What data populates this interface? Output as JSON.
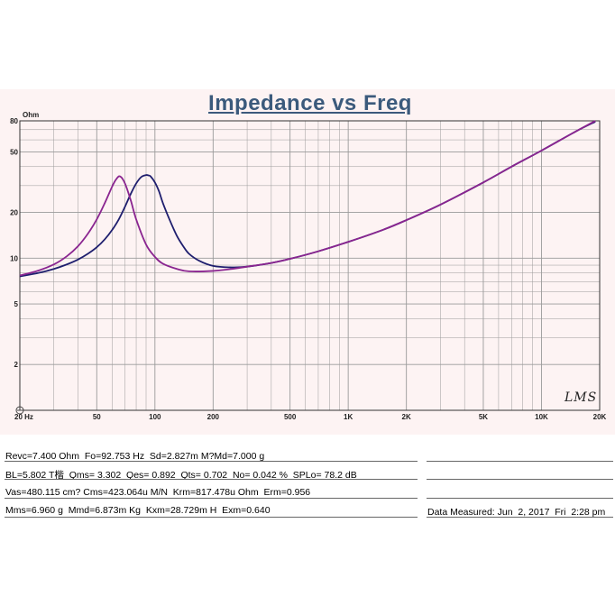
{
  "chart_data": {
    "type": "line",
    "title": "Impedance vs Freq",
    "ylabel": "Ohm",
    "xlabel": "",
    "x_scale": "log",
    "y_scale": "log",
    "xlim": [
      20,
      20000
    ],
    "ylim": [
      1,
      80
    ],
    "grid": true,
    "x_ticks": [
      {
        "value": 20,
        "label": "20 Hz"
      },
      {
        "value": 50,
        "label": "50"
      },
      {
        "value": 100,
        "label": "100"
      },
      {
        "value": 200,
        "label": "200"
      },
      {
        "value": 500,
        "label": "500"
      },
      {
        "value": 1000,
        "label": "1K"
      },
      {
        "value": 2000,
        "label": "2K"
      },
      {
        "value": 5000,
        "label": "5K"
      },
      {
        "value": 10000,
        "label": "10K"
      },
      {
        "value": 20000,
        "label": "20K"
      }
    ],
    "y_ticks": [
      {
        "value": 80,
        "label": "80"
      },
      {
        "value": 50,
        "label": "50"
      },
      {
        "value": 20,
        "label": "20"
      },
      {
        "value": 10,
        "label": "10"
      },
      {
        "value": 5,
        "label": "5"
      },
      {
        "value": 2,
        "label": "2"
      }
    ],
    "series": [
      {
        "color": "#1e1e6e",
        "x": [
          20,
          25,
          30,
          35,
          40,
          45,
          50,
          55,
          60,
          65,
          70,
          75,
          80,
          85,
          90,
          92.7,
          95,
          100,
          105,
          110,
          120,
          130,
          140,
          150,
          170,
          200,
          250,
          300,
          400,
          500,
          700,
          1000,
          1500,
          2000,
          3000,
          5000,
          7000,
          10000,
          15000,
          19000
        ],
        "y": [
          7.6,
          8.0,
          8.5,
          9.1,
          9.8,
          10.7,
          11.8,
          13.3,
          15.3,
          18.0,
          21.8,
          26.5,
          31.0,
          34.2,
          35.2,
          35.0,
          34.5,
          31.5,
          27.5,
          23.0,
          17.5,
          14.0,
          12.0,
          10.7,
          9.6,
          8.9,
          8.7,
          8.8,
          9.3,
          9.9,
          11.1,
          12.8,
          15.3,
          17.8,
          22.5,
          31.5,
          40.0,
          51.0,
          68.0,
          79.0
        ]
      },
      {
        "color": "#8a2590",
        "x": [
          20,
          25,
          30,
          35,
          40,
          45,
          50,
          55,
          60,
          63,
          66,
          70,
          75,
          80,
          90,
          100,
          110,
          130,
          150,
          200,
          250,
          300,
          400,
          500,
          700,
          1000,
          1500,
          2000,
          3000,
          5000,
          7000,
          10000,
          15000,
          19000
        ],
        "y": [
          7.7,
          8.3,
          9.1,
          10.3,
          12.0,
          14.5,
          18.0,
          23.0,
          29.5,
          33.0,
          34.5,
          31.0,
          24.0,
          18.0,
          12.3,
          10.2,
          9.2,
          8.5,
          8.2,
          8.25,
          8.5,
          8.8,
          9.3,
          9.9,
          11.1,
          12.8,
          15.3,
          17.8,
          22.5,
          31.5,
          40.0,
          51.0,
          68.0,
          80.0
        ]
      }
    ]
  },
  "parameters": {
    "row1": "Revc=7.400 Ohm  Fo=92.753 Hz  Sd=2.827m M?Md=7.000 g",
    "row2": "BL=5.802 T楷  Qms= 3.302  Qes= 0.892  Qts= 0.702  No= 0.042 %  SPLo= 78.2 dB",
    "row3": "Vas=480.115 cm? Cms=423.064u M/N  Krm=817.478u Ohm  Erm=0.956",
    "row4": "Mms=6.960 g  Mmd=6.873m Kg  Kxm=28.729m H  Exm=0.640",
    "measured": "Data Measured: Jun  2, 2017  Fri  2:28 pm"
  },
  "logo_text": "LMS",
  "colors": {
    "panel_bg": "#fdf3f3",
    "title": "#3b5a7c",
    "grid": "#9a9a9a",
    "series_1": "#1e1e6e",
    "series_2": "#8a2590"
  }
}
